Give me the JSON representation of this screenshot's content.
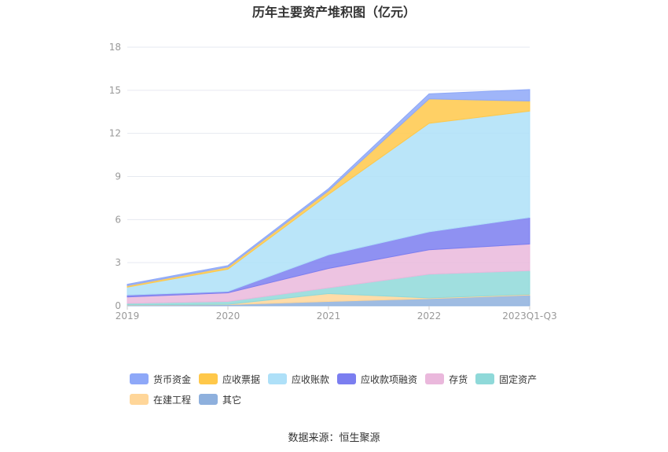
{
  "title": "历年主要资产堆积图（亿元）",
  "source": "数据来源：恒生聚源",
  "chart_data": {
    "type": "area",
    "stacked": true,
    "categories": [
      "2019",
      "2020",
      "2021",
      "2022",
      "2023Q1-Q3"
    ],
    "y_ticks": [
      "0",
      "3",
      "6",
      "9",
      "12",
      "15",
      "18"
    ],
    "ylim": [
      0,
      18
    ],
    "grid": true,
    "legend_position": "bottom",
    "series": [
      {
        "name": "其它",
        "color": "#8eb0dd",
        "values": [
          0.05,
          0.08,
          0.3,
          0.5,
          0.75
        ]
      },
      {
        "name": "在建工程",
        "color": "#ffd699",
        "values": [
          0.02,
          0.02,
          0.55,
          0.05,
          0.05
        ]
      },
      {
        "name": "固定资产",
        "color": "#8fd9d9",
        "values": [
          0.1,
          0.2,
          0.4,
          1.65,
          1.65
        ]
      },
      {
        "name": "存货",
        "color": "#eab8dc",
        "values": [
          0.45,
          0.6,
          1.35,
          1.7,
          1.85
        ]
      },
      {
        "name": "应收款项融资",
        "color": "#7b7ef0",
        "values": [
          0.13,
          0.1,
          0.95,
          1.25,
          1.85
        ]
      },
      {
        "name": "应收账款",
        "color": "#aee0f8",
        "values": [
          0.55,
          1.55,
          4.2,
          7.55,
          7.4
        ]
      },
      {
        "name": "应收票据",
        "color": "#ffc84a",
        "values": [
          0.1,
          0.15,
          0.25,
          1.7,
          0.7
        ]
      },
      {
        "name": "货币资金",
        "color": "#8ea8f8",
        "values": [
          0.1,
          0.1,
          0.15,
          0.35,
          0.8
        ]
      }
    ]
  },
  "legend_order": [
    {
      "name": "货币资金",
      "color": "#8ea8f8"
    },
    {
      "name": "应收票据",
      "color": "#ffc84a"
    },
    {
      "name": "应收账款",
      "color": "#aee0f8"
    },
    {
      "name": "应收款项融资",
      "color": "#7b7ef0"
    },
    {
      "name": "存货",
      "color": "#eab8dc"
    },
    {
      "name": "固定资产",
      "color": "#8fd9d9"
    },
    {
      "name": "在建工程",
      "color": "#ffd699"
    },
    {
      "name": "其它",
      "color": "#8eb0dd"
    }
  ]
}
